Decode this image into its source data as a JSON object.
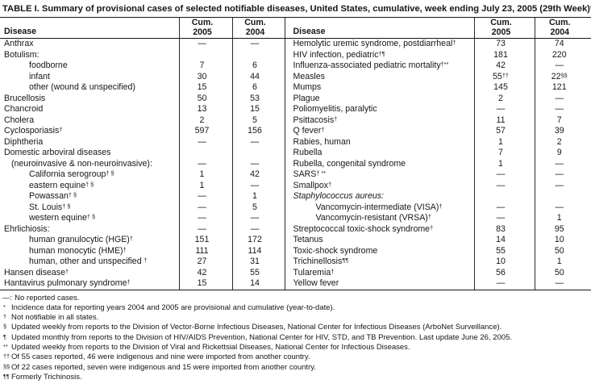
{
  "title": "TABLE I. Summary of provisional cases of selected notifiable diseases, United States, cumulative, week ending July 23, 2005 (29th Week)*",
  "table": {
    "header": {
      "disease": "Disease",
      "cum": "Cum.",
      "y2005": "2005",
      "y2004": "2004"
    },
    "left_rows": [
      {
        "label": "Anthrax",
        "v05": "—",
        "v04": "—"
      },
      {
        "label": "Botulism:",
        "v05": "",
        "v04": ""
      },
      {
        "label": "foodborne",
        "indent": 2,
        "v05": "7",
        "v04": "6"
      },
      {
        "label": "infant",
        "indent": 2,
        "v05": "30",
        "v04": "44"
      },
      {
        "label": "other (wound & unspecified)",
        "indent": 2,
        "v05": "15",
        "v04": "6"
      },
      {
        "label": "Brucellosis",
        "v05": "50",
        "v04": "53"
      },
      {
        "label": "Chancroid",
        "v05": "13",
        "v04": "15"
      },
      {
        "label": "Cholera",
        "v05": "2",
        "v04": "5"
      },
      {
        "label": "Cyclosporiasis",
        "sup": "†",
        "v05": "597",
        "v04": "156"
      },
      {
        "label": "Diphtheria",
        "v05": "—",
        "v04": "—"
      },
      {
        "label": "Domestic arboviral diseases",
        "v05": "",
        "v04": ""
      },
      {
        "label": "(neuroinvasive & non-neuroinvasive):",
        "indent": 1,
        "v05": "—",
        "v04": "—"
      },
      {
        "label": "California serogroup",
        "sup": "† §",
        "indent": 2,
        "v05": "1",
        "v04": "42"
      },
      {
        "label": "eastern equine",
        "sup": "† §",
        "indent": 2,
        "v05": "1",
        "v04": "—"
      },
      {
        "label": "Powassan",
        "sup": "† §",
        "indent": 2,
        "v05": "—",
        "v04": "1"
      },
      {
        "label": "St. Louis",
        "sup": "† §",
        "indent": 2,
        "v05": "—",
        "v04": "5"
      },
      {
        "label": "western equine",
        "sup": "† §",
        "indent": 2,
        "v05": "—",
        "v04": "—"
      },
      {
        "label": "Ehrlichiosis:",
        "v05": "—",
        "v04": "—"
      },
      {
        "label": "human granulocytic (HGE)",
        "sup": "†",
        "indent": 2,
        "v05": "151",
        "v04": "172"
      },
      {
        "label": "human monocytic (HME)",
        "sup": "†",
        "indent": 2,
        "v05": "111",
        "v04": "114"
      },
      {
        "label": "human, other and unspecified ",
        "sup": "†",
        "indent": 2,
        "v05": "27",
        "v04": "31"
      },
      {
        "label": "Hansen disease",
        "sup": "†",
        "v05": "42",
        "v04": "55"
      },
      {
        "label": "Hantavirus pulmonary syndrome",
        "sup": "†",
        "v05": "15",
        "v04": "14"
      }
    ],
    "right_rows": [
      {
        "label": "Hemolytic uremic syndrome, postdiarrheal",
        "sup": "†",
        "v05": "73",
        "v04": "74"
      },
      {
        "label": "HIV infection, pediatric",
        "sup": "†¶",
        "v05": "181",
        "v04": "220"
      },
      {
        "label": "Influenza-associated pediatric mortality",
        "sup": "†**",
        "v05": "42",
        "v04": "—"
      },
      {
        "label": "Measles",
        "v05": "55",
        "s05": "††",
        "v04": "22",
        "s04": "§§"
      },
      {
        "label": "Mumps",
        "v05": "145",
        "v04": "121"
      },
      {
        "label": "Plague",
        "v05": "2",
        "v04": "—"
      },
      {
        "label": "Poliomyelitis, paralytic",
        "v05": "—",
        "v04": "—"
      },
      {
        "label": "Psittacosis",
        "sup": "†",
        "v05": "11",
        "v04": "7"
      },
      {
        "label": "Q fever",
        "sup": "†",
        "v05": "57",
        "v04": "39"
      },
      {
        "label": "Rabies, human",
        "v05": "1",
        "v04": "2"
      },
      {
        "label": "Rubella",
        "v05": "7",
        "v04": "9"
      },
      {
        "label": "Rubella, congenital syndrome",
        "v05": "1",
        "v04": "—"
      },
      {
        "label": "SARS",
        "sup": "† **",
        "v05": "—",
        "v04": "—"
      },
      {
        "label": "Smallpox",
        "sup": "†",
        "v05": "—",
        "v04": "—"
      },
      {
        "label": "Staphylococcus aureus:",
        "italic": true,
        "v05": "",
        "v04": ""
      },
      {
        "label": "Vancomycin-intermediate (VISA)",
        "sup": "†",
        "indent": 2,
        "v05": "—",
        "v04": "—"
      },
      {
        "label": "Vancomycin-resistant (VRSA)",
        "sup": "†",
        "indent": 2,
        "v05": "—",
        "v04": "1"
      },
      {
        "label": "Streptococcal toxic-shock syndrome",
        "sup": "†",
        "v05": "83",
        "v04": "95"
      },
      {
        "label": "Tetanus",
        "v05": "14",
        "v04": "10"
      },
      {
        "label": "Toxic-shock syndrome",
        "v05": "55",
        "v04": "50"
      },
      {
        "label": "Trichinellosis",
        "sup": "¶¶",
        "v05": "10",
        "v04": "1"
      },
      {
        "label": "Tularemia",
        "sup": "†",
        "v05": "56",
        "v04": "50"
      },
      {
        "label": "Yellow fever",
        "v05": "—",
        "v04": "—"
      }
    ]
  },
  "footnotes": [
    {
      "marker": "—:",
      "plain": true,
      "text": "No reported cases."
    },
    {
      "marker": "*",
      "text": "Incidence data for reporting years 2004 and 2005 are provisional and cumulative (year-to-date)."
    },
    {
      "marker": "†",
      "text": "Not notifiable in all states."
    },
    {
      "marker": "§",
      "text": "Updated weekly from reports to the Division of Vector-Borne Infectious Diseases, National Center for Infectious Diseases (ArboNet Surveillance)."
    },
    {
      "marker": "¶",
      "text": "Updated monthly from reports to the Division of HIV/AIDS Prevention, National Center for HIV, STD, and TB Prevention. Last update June 26, 2005."
    },
    {
      "marker": "**",
      "text": "Updated weekly from reports to the Division of Viral and Rickettsial Diseases, National Center for Infectious Diseases."
    },
    {
      "marker": "††",
      "text": "Of 55 cases reported, 46 were indigenous and nine were imported from another country."
    },
    {
      "marker": "§§",
      "text": "Of 22 cases reported, seven were indigenous and 15 were imported from another country."
    },
    {
      "marker": "¶¶",
      "text": "Formerly Trichinosis."
    }
  ]
}
